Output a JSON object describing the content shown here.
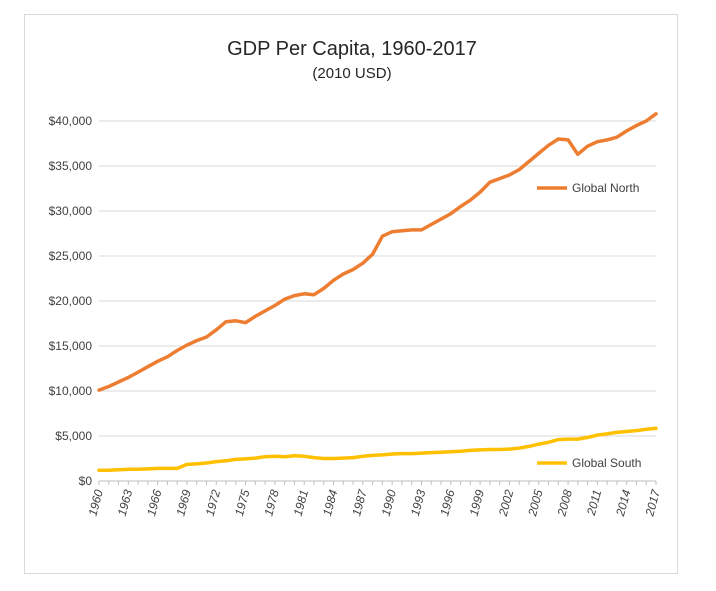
{
  "chart_data": {
    "type": "line",
    "title": "GDP Per Capita, 1960-2017",
    "subtitle": "(2010 USD)",
    "xlabel": "",
    "ylabel": "",
    "ylim": [
      0,
      40000
    ],
    "yticks": [
      0,
      5000,
      10000,
      15000,
      20000,
      25000,
      30000,
      35000,
      40000
    ],
    "ytick_labels": [
      "$0",
      "$5,000",
      "$10,000",
      "$15,000",
      "$20,000",
      "$25,000",
      "$30,000",
      "$35,000",
      "$40,000"
    ],
    "x": [
      1960,
      1961,
      1962,
      1963,
      1964,
      1965,
      1966,
      1967,
      1968,
      1969,
      1970,
      1971,
      1972,
      1973,
      1974,
      1975,
      1976,
      1977,
      1978,
      1979,
      1980,
      1981,
      1982,
      1983,
      1984,
      1985,
      1986,
      1987,
      1988,
      1989,
      1990,
      1991,
      1992,
      1993,
      1994,
      1995,
      1996,
      1997,
      1998,
      1999,
      2000,
      2001,
      2002,
      2003,
      2004,
      2005,
      2006,
      2007,
      2008,
      2009,
      2010,
      2011,
      2012,
      2013,
      2014,
      2015,
      2016,
      2017
    ],
    "xtick_labels": [
      "1960",
      "1963",
      "1966",
      "1969",
      "1972",
      "1975",
      "1978",
      "1981",
      "1984",
      "1987",
      "1990",
      "1993",
      "1996",
      "1999",
      "2002",
      "2005",
      "2008",
      "2011",
      "2014",
      "2017"
    ],
    "grid": true,
    "legend": "right",
    "series": [
      {
        "name": "Global North",
        "color": "#ed7d31",
        "values": [
          10100,
          10500,
          11000,
          11500,
          12100,
          12700,
          13300,
          13800,
          14500,
          15100,
          15600,
          16000,
          16800,
          17700,
          17800,
          17600,
          18300,
          18900,
          19500,
          20200,
          20600,
          20800,
          20700,
          21400,
          22300,
          23000,
          23500,
          24200,
          25200,
          27200,
          27700,
          27800,
          27900,
          27900,
          28500,
          29100,
          29700,
          30500,
          31200,
          32100,
          33200,
          33600,
          34000,
          34600,
          35500,
          36400,
          37300,
          38000,
          37900,
          36300,
          37200,
          37700,
          37900,
          38200,
          38900,
          39500,
          40000,
          40800
        ]
      },
      {
        "name": "Global South",
        "color": "#ffc000",
        "values": [
          1200,
          1200,
          1250,
          1300,
          1300,
          1350,
          1400,
          1400,
          1400,
          1850,
          1900,
          2000,
          2150,
          2250,
          2400,
          2450,
          2550,
          2700,
          2750,
          2700,
          2800,
          2750,
          2600,
          2500,
          2500,
          2550,
          2600,
          2750,
          2850,
          2900,
          3000,
          3050,
          3050,
          3100,
          3150,
          3200,
          3250,
          3300,
          3400,
          3450,
          3500,
          3500,
          3550,
          3650,
          3850,
          4100,
          4300,
          4600,
          4650,
          4650,
          4850,
          5100,
          5250,
          5400,
          5500,
          5600,
          5750,
          5850
        ]
      }
    ]
  }
}
